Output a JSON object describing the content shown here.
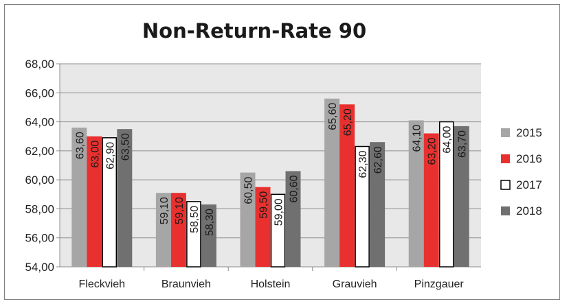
{
  "chart_data": {
    "type": "bar",
    "title": "Non-Return-Rate 90",
    "categories": [
      "Fleckvieh",
      "Braunvieh",
      "Holstein",
      "Grauvieh",
      "Pinzgauer"
    ],
    "series": [
      {
        "name": "2015",
        "color": "#a6a6a6",
        "stroke": "#a6a6a6",
        "values": [
          63.6,
          59.1,
          60.5,
          65.6,
          64.1
        ],
        "labels": [
          "63,60",
          "59,10",
          "60,50",
          "65,60",
          "64,10"
        ]
      },
      {
        "name": "2016",
        "color": "#e8312f",
        "stroke": "#e8312f",
        "values": [
          63.0,
          59.1,
          59.5,
          65.2,
          63.2
        ],
        "labels": [
          "63,00",
          "59,10",
          "59,50",
          "65,20",
          "63,20"
        ]
      },
      {
        "name": "2017",
        "color": "#ffffff",
        "stroke": "#000000",
        "values": [
          62.9,
          58.5,
          59.0,
          62.3,
          64.0
        ],
        "labels": [
          "62,90",
          "58,50",
          "59,00",
          "62,30",
          "64,00"
        ]
      },
      {
        "name": "2018",
        "color": "#707070",
        "stroke": "#707070",
        "values": [
          63.5,
          58.3,
          60.6,
          62.6,
          63.7
        ],
        "labels": [
          "63,50",
          "58,30",
          "60,60",
          "62,60",
          "63,70"
        ]
      }
    ],
    "ylim": [
      54,
      68
    ],
    "yticks": [
      "54,00",
      "56,00",
      "58,00",
      "60,00",
      "62,00",
      "64,00",
      "66,00",
      "68,00"
    ],
    "ytick_values": [
      54,
      56,
      58,
      60,
      62,
      64,
      66,
      68
    ],
    "grid": true,
    "legend_position": "right",
    "plot_background": "#e8e8e8"
  }
}
